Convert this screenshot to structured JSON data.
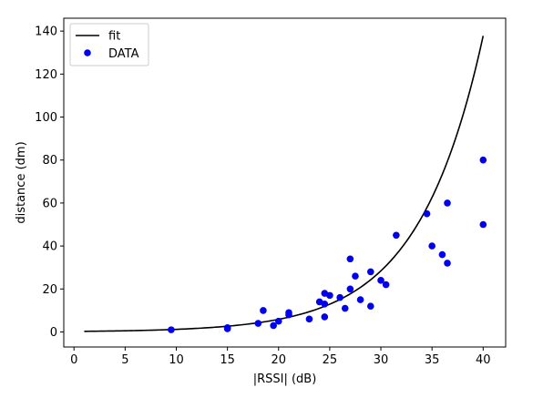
{
  "chart_data": {
    "type": "scatter",
    "xlabel": "|RSSI| (dB)",
    "ylabel": "distance (dm)",
    "xlim": [
      -1,
      42.2
    ],
    "ylim": [
      -7,
      146
    ],
    "xticks": [
      0,
      5,
      10,
      15,
      20,
      25,
      30,
      35,
      40
    ],
    "yticks": [
      0,
      20,
      40,
      60,
      80,
      100,
      120,
      140
    ],
    "grid": false,
    "legend_position": "top-left",
    "colors": {
      "fit": "#000000",
      "data": "#0000ee"
    },
    "series": [
      {
        "name": "fit",
        "kind": "line",
        "model": "exponential",
        "x_range": [
          1,
          40
        ],
        "a": 0.25,
        "b": 0.1578
      },
      {
        "name": "DATA",
        "kind": "scatter",
        "points": [
          [
            9.5,
            1
          ],
          [
            15,
            1.5
          ],
          [
            15,
            2
          ],
          [
            18,
            4
          ],
          [
            18.5,
            10
          ],
          [
            19.5,
            3
          ],
          [
            20,
            5
          ],
          [
            21,
            8
          ],
          [
            21,
            9
          ],
          [
            23,
            6
          ],
          [
            24,
            14
          ],
          [
            24.5,
            7
          ],
          [
            24.5,
            13
          ],
          [
            24.5,
            18
          ],
          [
            25,
            17
          ],
          [
            26,
            16
          ],
          [
            26.5,
            11
          ],
          [
            27,
            20
          ],
          [
            27,
            34
          ],
          [
            27.5,
            26
          ],
          [
            28,
            15
          ],
          [
            29,
            12
          ],
          [
            29,
            28
          ],
          [
            30,
            24
          ],
          [
            30.5,
            22
          ],
          [
            31.5,
            45
          ],
          [
            34.5,
            55
          ],
          [
            35,
            40
          ],
          [
            36,
            36
          ],
          [
            36.5,
            32
          ],
          [
            36.5,
            60
          ],
          [
            40,
            50
          ],
          [
            40,
            80
          ]
        ]
      }
    ]
  }
}
